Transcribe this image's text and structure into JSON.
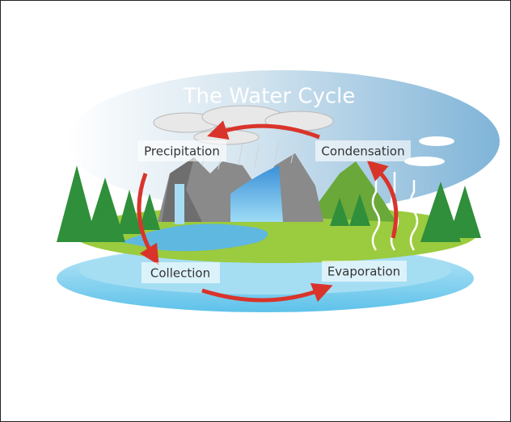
{
  "title": "The Water Cycle",
  "stages": [
    "Precipitation",
    "Condensation",
    "Collection",
    "Evaporation"
  ]
}
